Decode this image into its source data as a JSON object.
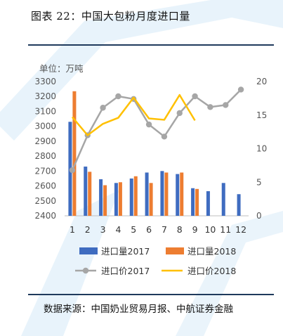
{
  "figure_title": "图表 22：中国大包粉月度进口量",
  "source_note": "数据来源：中国奶业贸易月报、中航证券金融",
  "colors": {
    "imports_2017": "#3f6cc0",
    "imports_2018": "#ed7d31",
    "price_2017": "#a6a6a6",
    "price_2018": "#ffc000",
    "rule": "#1f3a5c",
    "watermark": "#d6eaf8"
  },
  "chart_data": {
    "type": "bar+line",
    "unit_label": "单位：万吨",
    "categories": [
      "1",
      "2",
      "3",
      "4",
      "5",
      "6",
      "7",
      "8",
      "9",
      "10",
      "11",
      "12"
    ],
    "y_left": {
      "min": 2400,
      "max": 3300,
      "ticks": [
        2400,
        2500,
        2600,
        2700,
        2800,
        2900,
        3000,
        3100,
        3200,
        3300
      ]
    },
    "y_right": {
      "min": 0,
      "max": 20,
      "ticks": [
        0,
        5,
        10,
        15,
        20
      ]
    },
    "bar_series": [
      {
        "name": "进口量2017",
        "values": [
          3030,
          2730,
          2645,
          2620,
          2650,
          2690,
          2700,
          2680,
          2585,
          2565,
          2620,
          2545
        ]
      },
      {
        "name": "进口量2018",
        "values": [
          3235,
          2695,
          2605,
          2625,
          2665,
          2620,
          2690,
          2690,
          2580,
          null,
          null,
          null
        ]
      }
    ],
    "line_series": [
      {
        "name": "进口价2017",
        "values": [
          6.8,
          12.0,
          16.1,
          17.8,
          17.4,
          13.6,
          11.8,
          15.3,
          17.8,
          16.2,
          16.5,
          18.8
        ]
      },
      {
        "name": "进口价2018",
        "values": [
          14.7,
          12.0,
          13.7,
          14.6,
          17.6,
          14.5,
          14.3,
          18.0,
          14.2,
          null,
          null,
          null
        ]
      }
    ],
    "legend_placement": "bottom",
    "grid": false
  }
}
